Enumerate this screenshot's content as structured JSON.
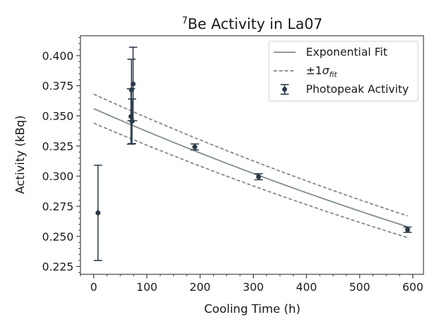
{
  "chart_data": {
    "type": "scatter",
    "title_sup": "7",
    "title_main": "Be Activity in La07",
    "xlabel": "Cooling Time (h)",
    "ylabel": "Activity (kBq)",
    "xlim": [
      -25,
      620
    ],
    "ylim": [
      0.2185,
      0.4165
    ],
    "xticks": [
      0,
      100,
      200,
      300,
      400,
      500,
      600
    ],
    "yticks": [
      0.225,
      0.25,
      0.275,
      0.3,
      0.325,
      0.35,
      0.375,
      0.4
    ],
    "ytick_labels": [
      "0.225",
      "0.250",
      "0.275",
      "0.300",
      "0.325",
      "0.350",
      "0.375",
      "0.400"
    ],
    "grid": false,
    "legend_position": "top-right",
    "legend": {
      "fit": "Exponential Fit",
      "band_prefix": "±1",
      "band_sigma": "σ",
      "band_sub": "fit",
      "points": "Photopeak Activity"
    },
    "points": [
      {
        "x": 8,
        "y": 0.2695,
        "err": 0.0395
      },
      {
        "x": 70,
        "y": 0.3495,
        "err": 0.023
      },
      {
        "x": 71,
        "y": 0.3715,
        "err": 0.0255
      },
      {
        "x": 72,
        "y": 0.3455,
        "err": 0.0185
      },
      {
        "x": 74,
        "y": 0.3765,
        "err": 0.0305
      },
      {
        "x": 190,
        "y": 0.3242,
        "err": 0.0025
      },
      {
        "x": 310,
        "y": 0.2995,
        "err": 0.0025
      },
      {
        "x": 590,
        "y": 0.2555,
        "err": 0.0022
      }
    ],
    "fit": {
      "x_start": 0,
      "x_end": 590,
      "center": [
        0.356,
        0.258
      ],
      "upper": [
        0.368,
        0.267
      ],
      "lower": [
        0.344,
        0.249
      ]
    },
    "colors": {
      "points": "#2b3a4a",
      "fit": "#7f8c8a",
      "band": "#7f8688",
      "axes": "#1a1a1a"
    }
  }
}
